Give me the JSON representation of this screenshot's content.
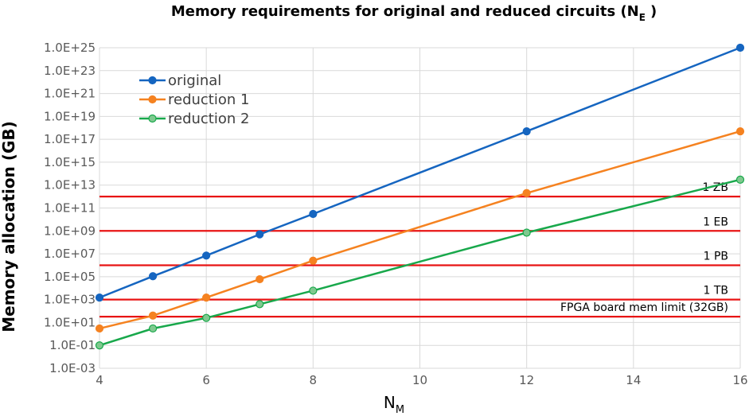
{
  "chart_data": {
    "type": "line",
    "title": "Memory requirements for original and reduced circuits (N",
    "title_subscript": "E",
    "title_suffix": ")",
    "xlabel": "N",
    "xlabel_subscript": "M",
    "ylabel": "Memory allocation (GB)",
    "y_scale": "log10",
    "xlim": [
      4,
      16
    ],
    "ylim": [
      0.001,
      1e+25
    ],
    "x_ticks": [
      4,
      6,
      8,
      10,
      12,
      14,
      16
    ],
    "y_tick_labels": [
      "1.0E-03",
      "1.0E-01",
      "1.0E+01",
      "1.0E+03",
      "1.0E+05",
      "1.0E+07",
      "1.0E+09",
      "1.0E+11",
      "1.0E+13",
      "1.0E+15",
      "1.0E+17",
      "1.0E+19",
      "1.0E+21",
      "1.0E+23",
      "1.0E+25"
    ],
    "grid": true,
    "legend_position": "top-left",
    "series": [
      {
        "name": "original",
        "color": "#1565C0",
        "x": [
          4,
          5,
          6,
          7,
          8,
          12,
          16
        ],
        "y": [
          1500.0,
          110000.0,
          7000000.0,
          500000000.0,
          30000000000.0,
          5e+17,
          1e+25
        ]
      },
      {
        "name": "reduction 1",
        "color": "#F58220",
        "x": [
          4,
          5,
          6,
          7,
          8,
          12,
          16
        ],
        "y": [
          3,
          40,
          1500.0,
          60000.0,
          2500000.0,
          2000000000000.0,
          5e+17
        ]
      },
      {
        "name": "reduction 2",
        "color": "#18A84B",
        "marker_fill": "#7FC98F",
        "x": [
          4,
          5,
          6,
          7,
          8,
          12,
          16
        ],
        "y": [
          0.1,
          3,
          25,
          400,
          6000.0,
          700000000.0,
          30000000000000.0
        ]
      }
    ],
    "reference_lines": [
      {
        "label": "1 ZB",
        "y": 1000000000000.0,
        "color": "#E81414"
      },
      {
        "label": "1 EB",
        "y": 1000000000.0,
        "color": "#E81414"
      },
      {
        "label": "1 PB",
        "y": 1000000.0,
        "color": "#E81414"
      },
      {
        "label": "1 TB",
        "y": 1000.0,
        "color": "#E81414"
      },
      {
        "label": "FPGA board mem limit (32GB)",
        "y": 32,
        "color": "#E81414"
      }
    ]
  }
}
